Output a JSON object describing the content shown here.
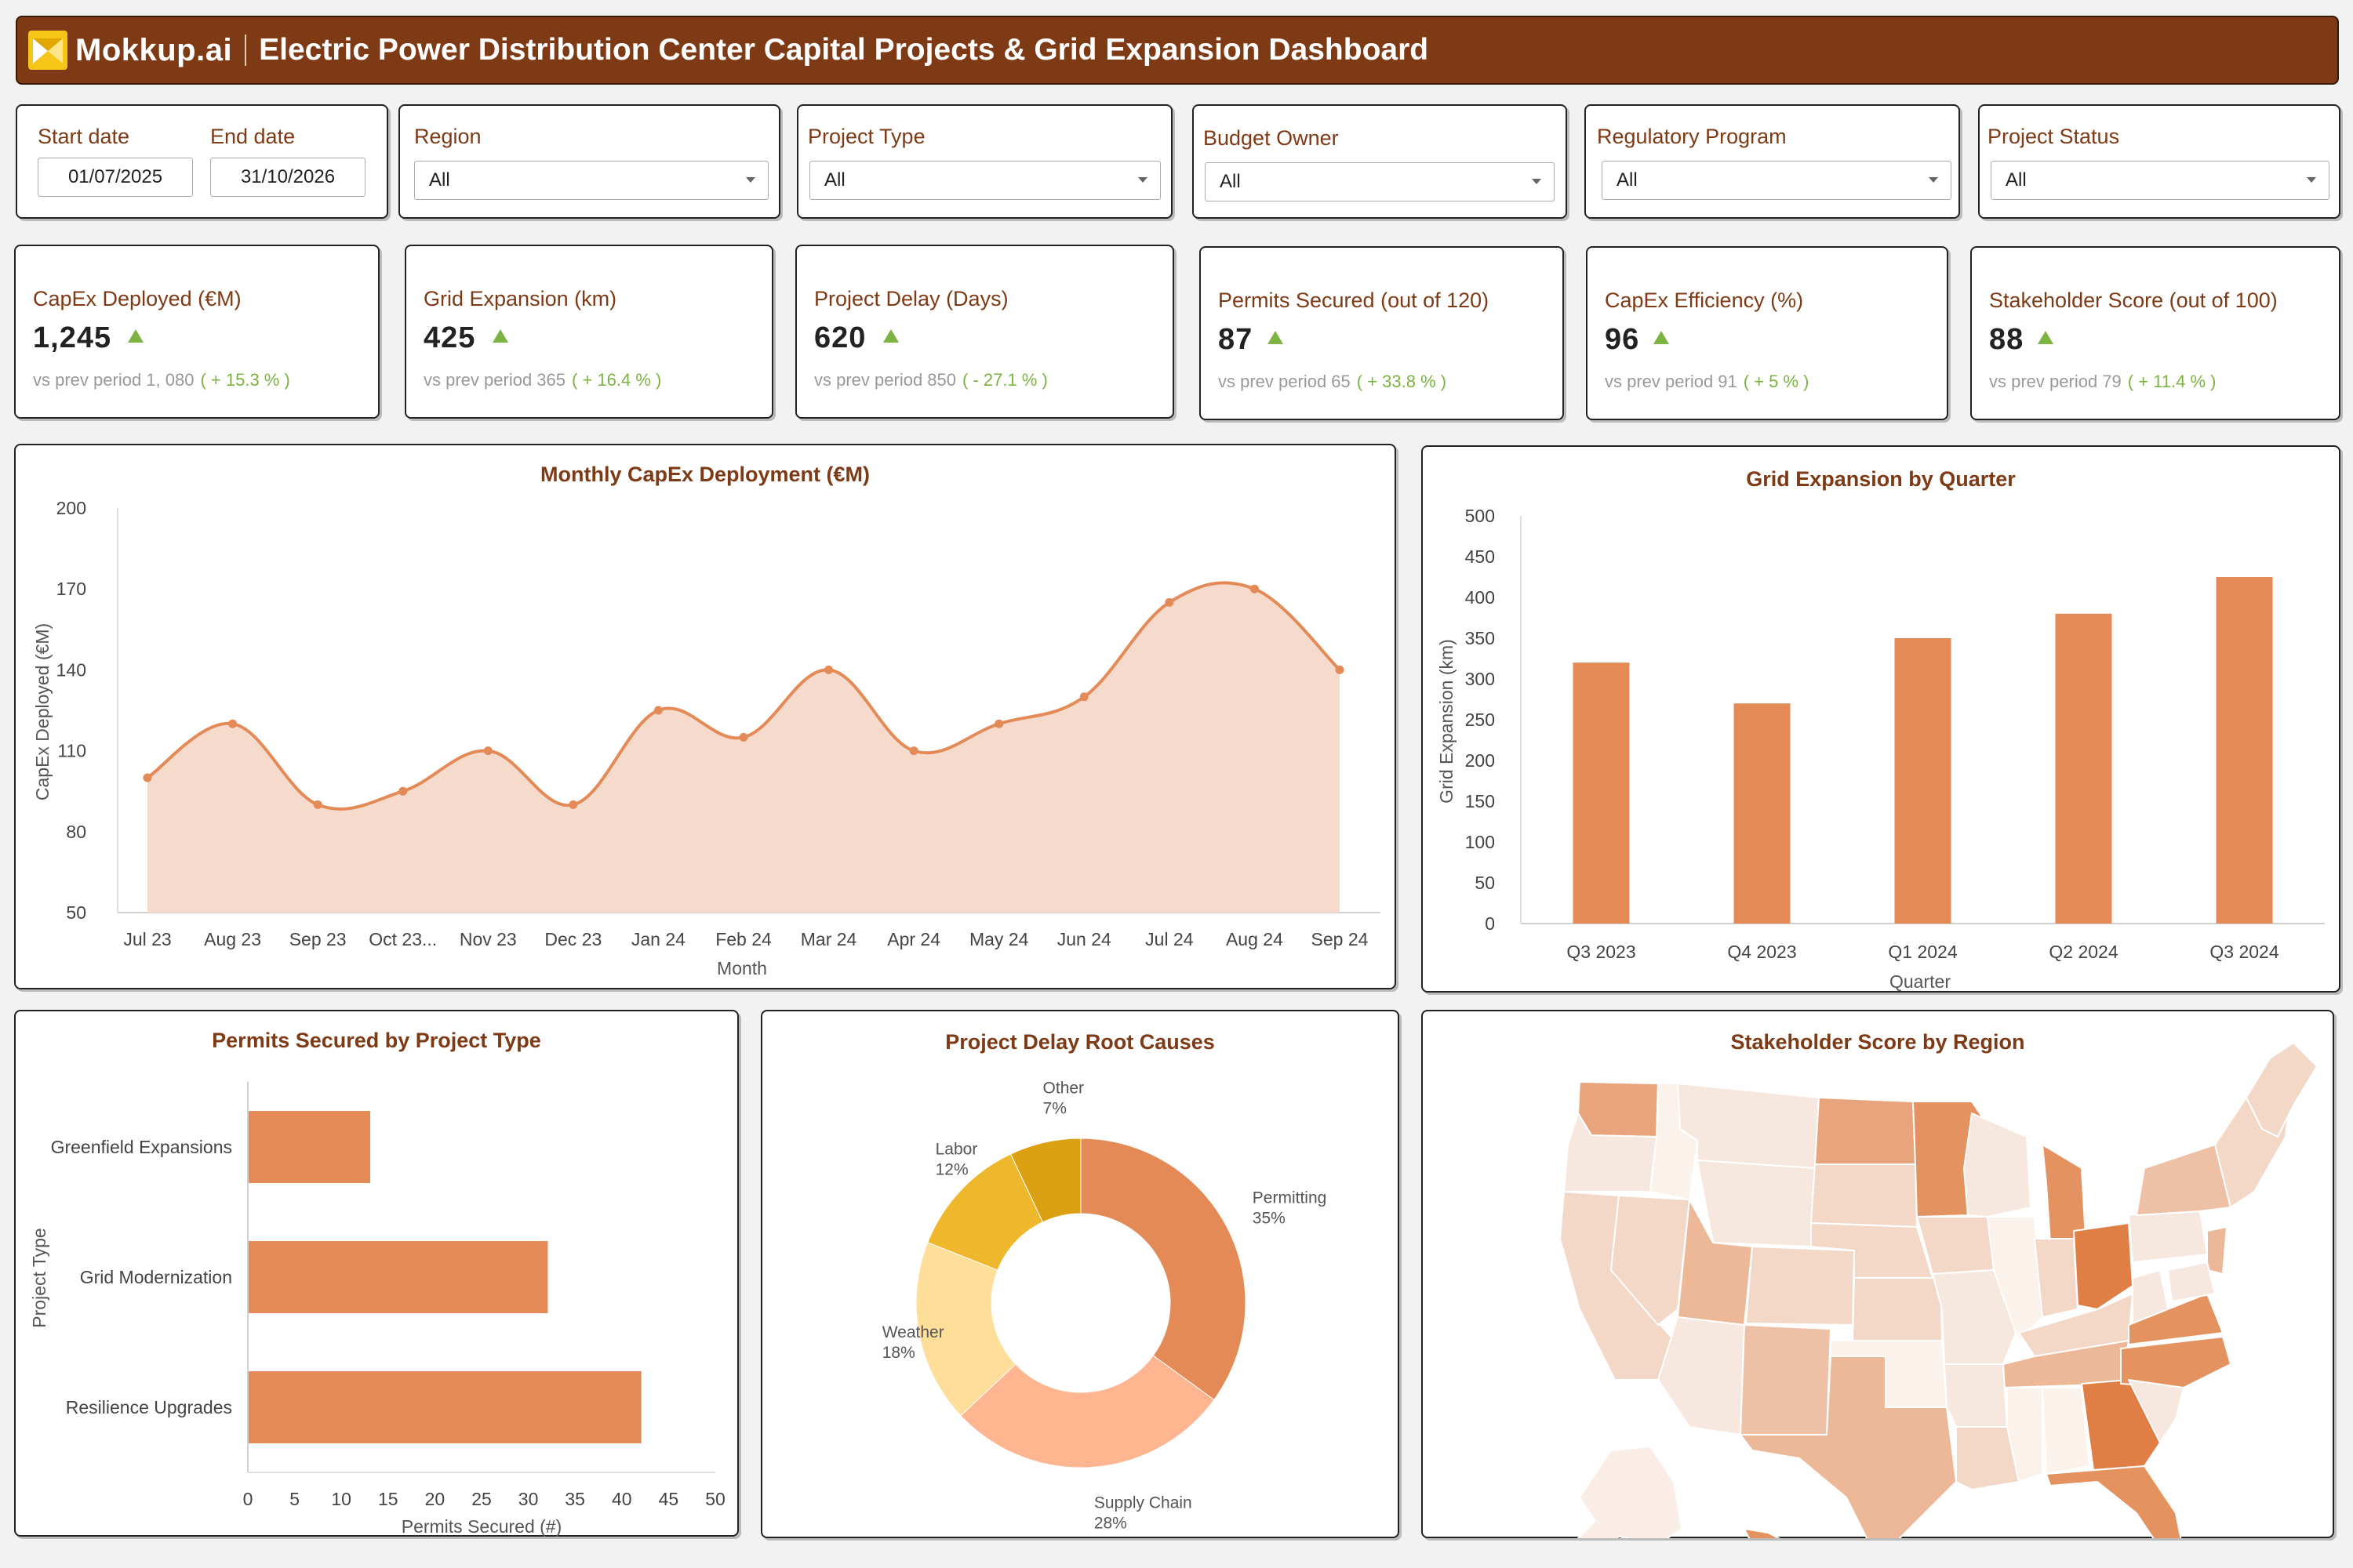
{
  "header": {
    "brand": "Mokkup.ai",
    "title": "Electric Power Distribution Center Capital Projects & Grid Expansion Dashboard"
  },
  "filters": {
    "start_label": "Start date",
    "end_label": "End date",
    "start_value": "01/07/2025",
    "end_value": "31/10/2026",
    "dropdowns": [
      {
        "label": "Region",
        "value": "All"
      },
      {
        "label": "Project Type",
        "value": "All"
      },
      {
        "label": "Budget Owner",
        "value": "All"
      },
      {
        "label": "Regulatory Program",
        "value": "All"
      },
      {
        "label": "Project Status",
        "value": "All"
      }
    ]
  },
  "kpis": [
    {
      "title": "CapEx Deployed (€M)",
      "value": "1,245",
      "prev": "vs prev period 1, 080",
      "change": "( + 15.3 % )"
    },
    {
      "title": "Grid Expansion (km)",
      "value": "425",
      "prev": "vs prev period 365",
      "change": "( + 16.4 % )"
    },
    {
      "title": "Project Delay (Days)",
      "value": "620",
      "prev": "vs prev period 850",
      "change": "( - 27.1 % )"
    },
    {
      "title": "Permits Secured (out of 120)",
      "value": "87",
      "prev": "vs prev period 65",
      "change": "( + 33.8 % )"
    },
    {
      "title": "CapEx Efficiency (%)",
      "value": "96",
      "prev": "vs prev period 91",
      "change": "( + 5 % )"
    },
    {
      "title": "Stakeholder Score (out of 100)",
      "value": "88",
      "prev": "vs prev period 79",
      "change": "( + 11.4 % )"
    }
  ],
  "colors": {
    "brand": "#7e3915",
    "accent": "#e48a57",
    "area_fill": "#f6dbcd",
    "positive": "#7cb342"
  },
  "chart_data": [
    {
      "type": "area",
      "title": "Monthly CapEx Deployment (€M)",
      "xlabel": "Month",
      "ylabel": "CapEx Deployed (€M)",
      "ylim": [
        50,
        200
      ],
      "yticks": [
        50,
        80,
        110,
        140,
        170,
        200
      ],
      "categories": [
        "Jul 23",
        "Aug 23",
        "Sep 23",
        "Oct 23...",
        "Nov 23",
        "Dec 23",
        "Jan 24",
        "Feb 24",
        "Mar 24",
        "Apr 24",
        "May 24",
        "Jun 24",
        "Jul 24",
        "Aug 24",
        "Sep 24"
      ],
      "values": [
        100,
        120,
        90,
        95,
        110,
        90,
        125,
        115,
        140,
        110,
        120,
        130,
        165,
        170,
        140
      ],
      "grid": false
    },
    {
      "type": "bar",
      "title": "Grid Expansion by Quarter",
      "xlabel": "Quarter",
      "ylabel": "Grid Expansion (km)",
      "ylim": [
        0,
        500
      ],
      "yticks": [
        0,
        50,
        100,
        150,
        200,
        250,
        300,
        350,
        400,
        450,
        500
      ],
      "categories": [
        "Q3 2023",
        "Q4 2023",
        "Q1 2024",
        "Q2 2024",
        "Q3 2024"
      ],
      "values": [
        320,
        270,
        350,
        380,
        425
      ],
      "grid": false
    },
    {
      "type": "bar",
      "orientation": "horizontal",
      "title": "Permits Secured by Project Type",
      "xlabel": "Permits Secured (#)",
      "ylabel": "Project Type",
      "xlim": [
        0,
        50
      ],
      "xticks": [
        0,
        5,
        10,
        15,
        20,
        25,
        30,
        35,
        40,
        45,
        50
      ],
      "categories": [
        "Greenfield Expansions",
        "Grid Modernization",
        "Resilience Upgrades"
      ],
      "values": [
        13,
        32,
        42
      ],
      "grid": false
    },
    {
      "type": "pie",
      "donut": true,
      "title": "Project Delay Root Causes",
      "slices": [
        {
          "label": "Permitting",
          "pct": "35%",
          "value": 35,
          "color": "#e48a57"
        },
        {
          "label": "Supply Chain",
          "pct": "28%",
          "value": 28,
          "color": "#ffb58f"
        },
        {
          "label": "Weather",
          "pct": "18%",
          "value": 18,
          "color": "#ffde99"
        },
        {
          "label": "Labor",
          "pct": "12%",
          "value": 12,
          "color": "#efb72b"
        },
        {
          "label": "Other",
          "pct": "7%",
          "value": 7,
          "color": "#dca112"
        }
      ]
    },
    {
      "type": "heatmap",
      "subtype": "choropleth-map",
      "title": "Stakeholder Score by Region",
      "region": "United States"
    }
  ]
}
